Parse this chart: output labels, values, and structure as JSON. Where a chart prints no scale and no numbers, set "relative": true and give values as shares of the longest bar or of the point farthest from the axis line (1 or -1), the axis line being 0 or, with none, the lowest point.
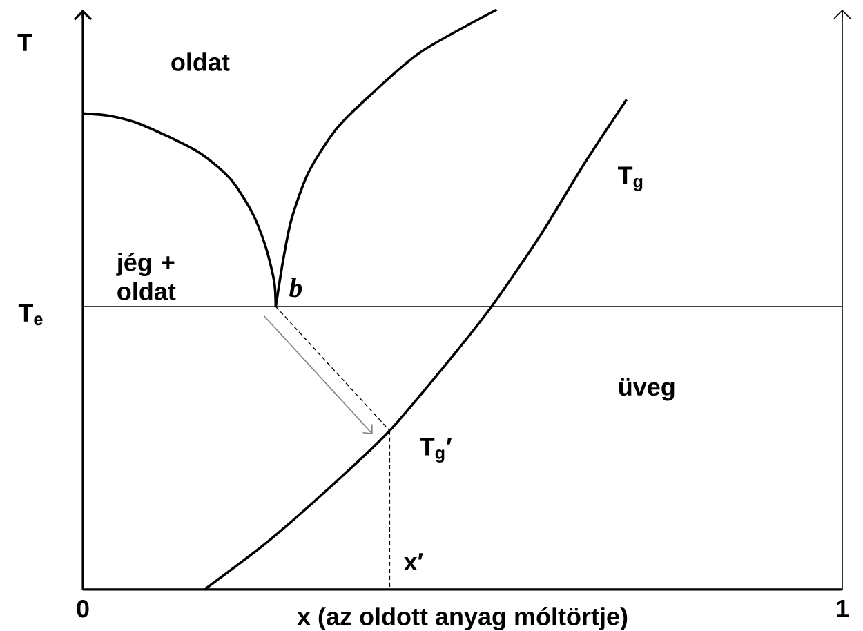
{
  "chart_data": {
    "type": "line",
    "relative": true,
    "xlabel": "x (az oldott anyag móltörtje)",
    "ylabel": "T",
    "xlim": [
      0,
      1
    ],
    "xticks": [
      0,
      1
    ],
    "line_style": "solid",
    "series": [
      {
        "color": "#000000",
        "x": [
          0,
          0.035,
          0.075,
          0.149,
          0.193,
          0.223,
          0.241,
          0.252,
          0.254
        ],
        "values": [
          0.821,
          0.817,
          0.803,
          0.757,
          0.71,
          0.65,
          0.59,
          0.531,
          0.488
        ]
      },
      {
        "color": "#000000",
        "x": [
          0.254,
          0.264,
          0.275,
          0.297,
          0.333,
          0.378,
          0.445,
          0.545
        ],
        "values": [
          0.488,
          0.57,
          0.64,
          0.719,
          0.793,
          0.852,
          0.927,
          1.0
        ]
      },
      {
        "name": "T$_{g}$",
        "color": "#000000",
        "x": [
          0.16,
          0.242,
          0.331,
          0.404,
          0.479,
          0.537,
          0.603,
          0.661,
          0.716
        ],
        "values": [
          0,
          0.081,
          0.183,
          0.274,
          0.39,
          0.486,
          0.612,
          0.736,
          0.845
        ]
      },
      {
        "color": "#000000",
        "line_style": "dashed",
        "x": [
          0.254,
          0.404
        ],
        "values": [
          0.488,
          0.274
        ]
      },
      {
        "color": "#000000",
        "line_style": "dashed",
        "x": [
          0.404,
          0.404
        ],
        "values": [
          0.274,
          0
        ]
      }
    ],
    "ref_lines": [
      {
        "axis": "y",
        "value": 0.488,
        "label": "T$_{e}$",
        "color": "#000000"
      }
    ],
    "annotations": [
      "oldat",
      "jég + oldat",
      "üveg",
      "b",
      "T$_{g}$′",
      "x′"
    ]
  }
}
